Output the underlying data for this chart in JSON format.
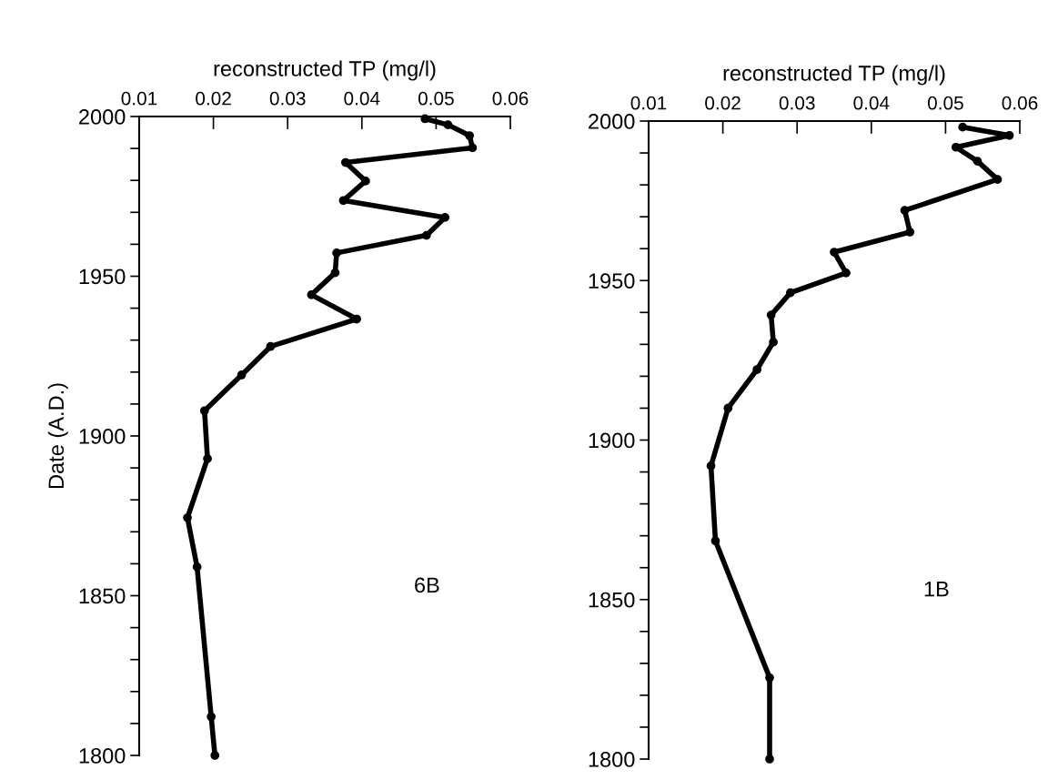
{
  "chart_data": [
    {
      "type": "line",
      "xlabel": "reconstructed TP (mg/l)",
      "ylabel": "Date (A.D.)",
      "annotations": [
        "6B"
      ],
      "marker": "circle",
      "line_style": "solid",
      "grid": false,
      "legend": false,
      "series": [
        {
          "color": "#000000",
          "x": [
            0.0485,
            0.0516,
            0.0545,
            0.0549,
            0.0378,
            0.0405,
            0.0375,
            0.0512,
            0.0487,
            0.0366,
            0.0364,
            0.0332,
            0.0393,
            0.0277,
            0.0238,
            0.0188,
            0.0192,
            0.0165,
            0.0178,
            0.0197,
            0.0202
          ],
          "values": [
            1999.3,
            1997.4,
            1994.0,
            1990.2,
            1985.6,
            1979.8,
            1973.7,
            1968.4,
            1962.8,
            1957.3,
            1951.1,
            1944.2,
            1936.6,
            1928.0,
            1919.1,
            1907.9,
            1892.9,
            1874.4,
            1859.0,
            1812.1,
            1800
          ]
        }
      ],
      "xlim": [
        0.01,
        0.06
      ],
      "xticks": [
        0.01,
        0.02,
        0.03,
        0.04,
        0.05,
        0.06
      ],
      "ylim": [
        1800,
        2000
      ],
      "yticks": [
        1800,
        {
          "value": 1810,
          "label": null
        },
        {
          "value": 1820,
          "label": null
        },
        {
          "value": 1830,
          "label": null
        },
        {
          "value": 1840,
          "label": null
        },
        1850,
        {
          "value": 1860,
          "label": null
        },
        {
          "value": 1870,
          "label": null
        },
        {
          "value": 1880,
          "label": null
        },
        {
          "value": 1890,
          "label": null
        },
        1900,
        {
          "value": 1910,
          "label": null
        },
        {
          "value": 1920,
          "label": null
        },
        {
          "value": 1930,
          "label": null
        },
        {
          "value": 1940,
          "label": null
        },
        1950,
        {
          "value": 1960,
          "label": null
        },
        {
          "value": 1970,
          "label": null
        },
        {
          "value": 1980,
          "label": null
        },
        {
          "value": 1990,
          "label": null
        },
        2000
      ]
    },
    {
      "type": "line",
      "xlabel": "reconstructed TP (mg/l)",
      "annotations": [
        "1B"
      ],
      "marker": "circle",
      "line_style": "solid",
      "grid": false,
      "legend": false,
      "series": [
        {
          "color": "#000000",
          "x": [
            0.0523,
            0.0586,
            0.0514,
            0.0543,
            0.057,
            0.0445,
            0.0452,
            0.035,
            0.0366,
            0.0291,
            0.0265,
            0.0268,
            0.0246,
            0.0207,
            0.0184,
            0.019,
            0.0263,
            0.0263
          ],
          "values": [
            1998.1,
            1995.5,
            1991.8,
            1987.4,
            1981.7,
            1972.0,
            1965.2,
            1958.9,
            1952.4,
            1946.2,
            1939.2,
            1930.7,
            1922.1,
            1910.0,
            1891.9,
            1868.4,
            1825.5,
            1800
          ]
        }
      ],
      "xlim": [
        0.01,
        0.06
      ],
      "xticks": [
        0.01,
        0.02,
        0.03,
        0.04,
        0.05,
        0.06
      ],
      "ylim": [
        1800,
        2000
      ],
      "yticks": [
        1800,
        {
          "value": 1810,
          "label": null
        },
        {
          "value": 1820,
          "label": null
        },
        {
          "value": 1830,
          "label": null
        },
        {
          "value": 1840,
          "label": null
        },
        1850,
        {
          "value": 1860,
          "label": null
        },
        {
          "value": 1870,
          "label": null
        },
        {
          "value": 1880,
          "label": null
        },
        {
          "value": 1890,
          "label": null
        },
        1900,
        {
          "value": 1910,
          "label": null
        },
        {
          "value": 1920,
          "label": null
        },
        {
          "value": 1930,
          "label": null
        },
        {
          "value": 1940,
          "label": null
        },
        1950,
        {
          "value": 1960,
          "label": null
        },
        {
          "value": 1970,
          "label": null
        },
        {
          "value": 1980,
          "label": null
        },
        {
          "value": 1990,
          "label": null
        },
        2000
      ]
    }
  ]
}
